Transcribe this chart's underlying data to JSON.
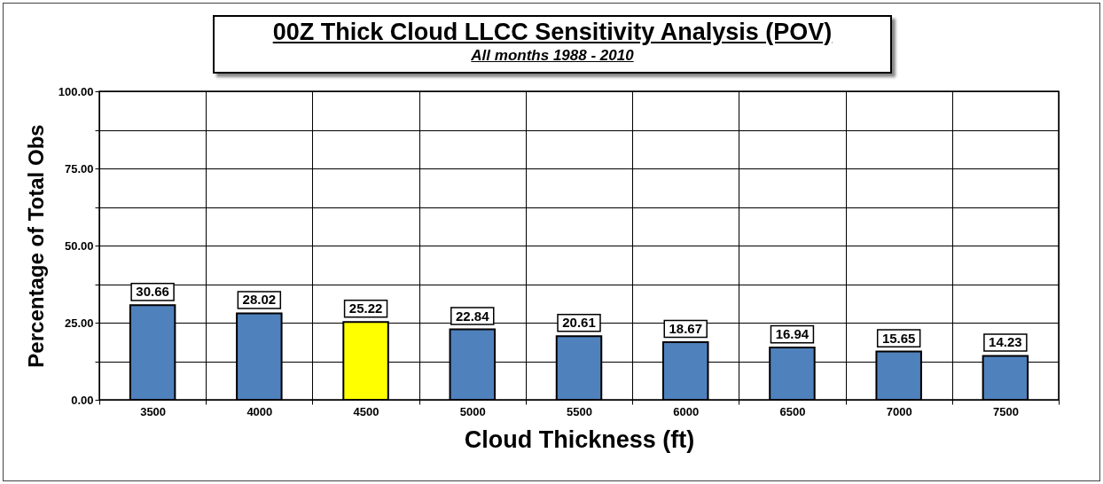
{
  "chart_data": {
    "type": "bar",
    "title": "00Z Thick Cloud LLCC Sensitivity Analysis (POV)",
    "subtitle": "All months 1988 - 2010",
    "xlabel": "Cloud Thickness (ft)",
    "ylabel": "Percentage of Total Obs",
    "categories": [
      "3500",
      "4000",
      "4500",
      "5000",
      "5500",
      "6000",
      "6500",
      "7000",
      "7500"
    ],
    "values": [
      30.66,
      28.02,
      25.22,
      22.84,
      20.61,
      18.67,
      16.94,
      15.65,
      14.23
    ],
    "colors": [
      "#4f81bd",
      "#4f81bd",
      "#ffff00",
      "#4f81bd",
      "#4f81bd",
      "#4f81bd",
      "#4f81bd",
      "#4f81bd",
      "#4f81bd"
    ],
    "ylim": [
      0,
      100
    ],
    "yticks": [
      {
        "value": 0,
        "label": "0.00"
      },
      {
        "value": 12.5,
        "label": null
      },
      {
        "value": 25,
        "label": "25.00"
      },
      {
        "value": 37.5,
        "label": null
      },
      {
        "value": 50,
        "label": "50.00"
      },
      {
        "value": 62.5,
        "label": null
      },
      {
        "value": 75,
        "label": "75.00"
      },
      {
        "value": 87.5,
        "label": null
      },
      {
        "value": 100,
        "label": "100.00"
      }
    ],
    "grid": true,
    "data_labels": true
  }
}
